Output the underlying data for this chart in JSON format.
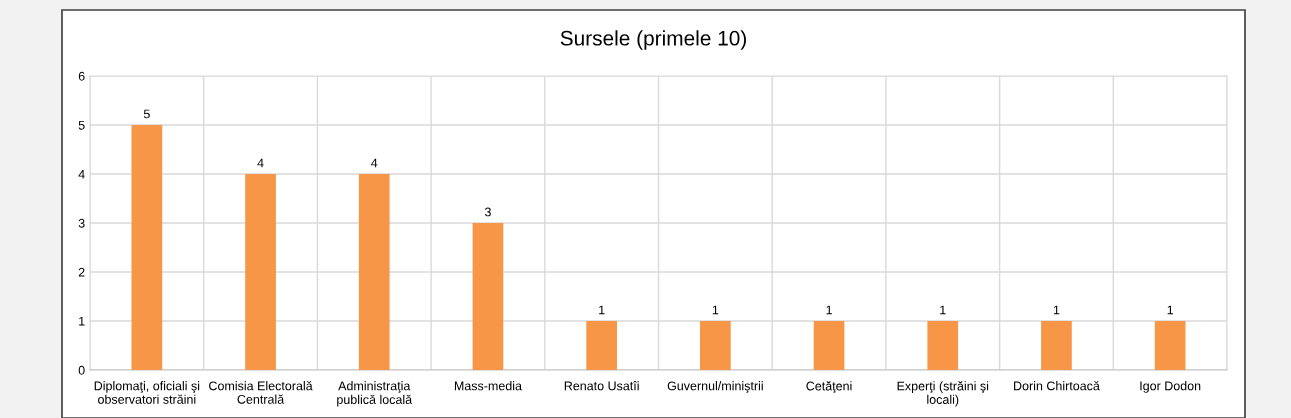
{
  "chart_data": {
    "type": "bar",
    "title": "Sursele (primele 10)",
    "categories": [
      "Diplomaţi, oficiali şi\nobservatori străini",
      "Comisia Electorală\nCentrală",
      "Administraţia\npublică locală",
      "Mass-media",
      "Renato Usatîi",
      "Guvernul/miniştrii",
      "Cetăţeni",
      "Experţi (străini şi\nlocali)",
      "Dorin Chirtoacă",
      "Igor Dodon"
    ],
    "values": [
      5,
      4,
      4,
      3,
      1,
      1,
      1,
      1,
      1,
      1
    ],
    "color": "#f79646",
    "ylim": [
      0,
      6
    ],
    "yticks": [
      0,
      1,
      2,
      3,
      4,
      5,
      6
    ],
    "grid": true,
    "data_labels": true
  }
}
